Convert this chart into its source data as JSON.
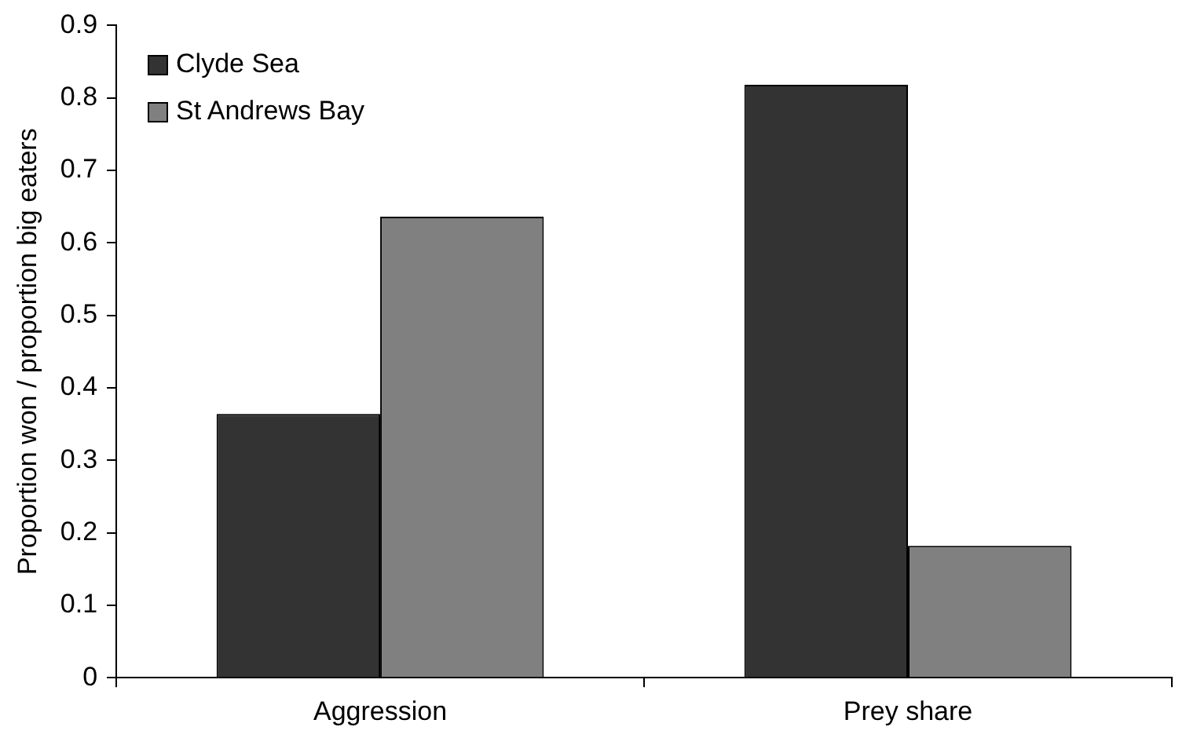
{
  "chart_data": {
    "type": "bar",
    "ylabel": "Proportion won / proportion big eaters",
    "categories": [
      "Aggression",
      "Prey share"
    ],
    "series": [
      {
        "name": "Clyde Sea",
        "color": "#333333",
        "values": [
          0.364,
          0.818
        ]
      },
      {
        "name": "St Andrews Bay",
        "color": "#808080",
        "values": [
          0.636,
          0.182
        ]
      }
    ],
    "ylim": [
      0,
      0.9
    ],
    "yticks": [
      0,
      0.1,
      0.2,
      0.3,
      0.4,
      0.5,
      0.6,
      0.7,
      0.8,
      0.9
    ],
    "grid": false,
    "legend": "top left"
  }
}
